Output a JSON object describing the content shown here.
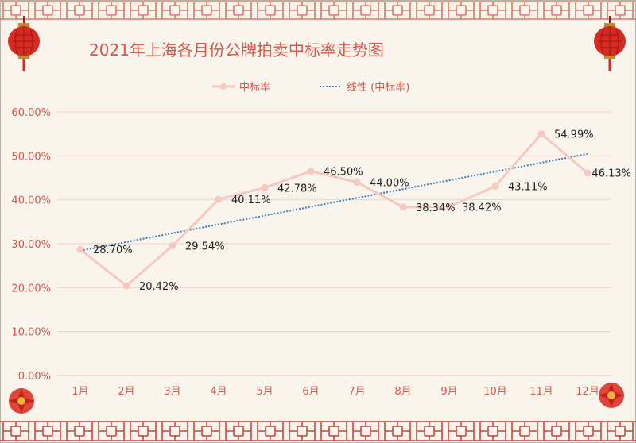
{
  "chart_data": {
    "type": "line",
    "title": "2021年上海各月份公牌拍卖中标率走势图",
    "categories": [
      "1月",
      "2月",
      "3月",
      "4月",
      "5月",
      "6月",
      "7月",
      "8月",
      "9月",
      "10月",
      "11月",
      "12月"
    ],
    "series": [
      {
        "name": "中标率",
        "values": [
          28.7,
          20.42,
          29.54,
          40.11,
          42.78,
          46.5,
          44.0,
          38.34,
          38.42,
          43.11,
          54.99,
          46.13
        ],
        "labels": [
          "28.70%",
          "20.42%",
          "29.54%",
          "40.11%",
          "42.78%",
          "46.50%",
          "44.00%",
          "38.34%",
          "38.42%",
          "43.11%",
          "54.99%",
          "46.13%"
        ],
        "color": "#f6c8c0",
        "marker": "circle"
      }
    ],
    "trendline": {
      "name": "线性 (中标率)",
      "type": "linear",
      "color": "#3a7fc4",
      "style": "dotted"
    },
    "yticks": [
      "0.00%",
      "10.00%",
      "20.00%",
      "30.00%",
      "40.00%",
      "50.00%",
      "60.00%"
    ],
    "ylim": [
      0,
      60
    ],
    "grid": true,
    "legend_position": "top",
    "colors": {
      "background": "#faf5ec",
      "axis_text": "#d4574b",
      "gridline": "#f3cfc6",
      "ornament": "#c9302c"
    }
  },
  "decorations": {
    "lantern_left": "red-lantern-icon",
    "lantern_right": "red-lantern-icon",
    "flower_left": "red-flower-icon",
    "flower_right": "red-flower-icon"
  }
}
